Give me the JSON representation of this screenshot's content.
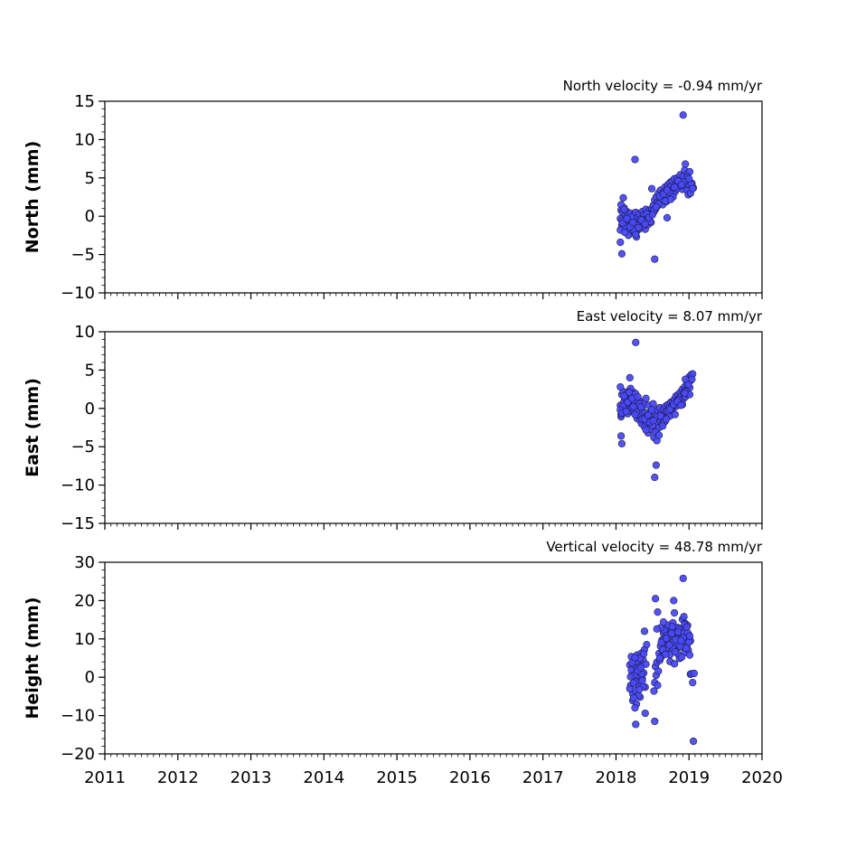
{
  "chart_data": [
    {
      "type": "scatter",
      "title": "North velocity = -0.94 mm/yr",
      "ylabel": "North (mm)",
      "xlabel": "",
      "xlim": [
        2011,
        2020
      ],
      "ylim": [
        -10,
        15
      ],
      "yticks": [
        15,
        10,
        5,
        0,
        -5,
        -10
      ],
      "ytick_labels": [
        "15",
        "10",
        "5",
        "0",
        "−5",
        "−10"
      ],
      "xticks": [
        2011,
        2012,
        2013,
        2014,
        2015,
        2016,
        2017,
        2018,
        2019,
        2020
      ],
      "xtick_labels": [],
      "marker_color": "#4a4af5",
      "series": [
        {
          "x": [
            2018.06,
            2018.07,
            2018.08,
            2018.09,
            2018.1,
            2018.11,
            2018.12,
            2018.13,
            2018.14,
            2018.15,
            2018.16,
            2018.17,
            2018.18,
            2018.19,
            2018.2,
            2018.21,
            2018.22,
            2018.23,
            2018.24,
            2018.25,
            2018.26,
            2018.27,
            2018.28,
            2018.29,
            2018.3,
            2018.31,
            2018.32,
            2018.33,
            2018.34,
            2018.35,
            2018.36,
            2018.37,
            2018.38,
            2018.39,
            2018.4,
            2018.41,
            2018.42,
            2018.43,
            2018.44,
            2018.45,
            2018.46,
            2018.47,
            2018.48,
            2018.49,
            2018.5,
            2018.51,
            2018.52,
            2018.53,
            2018.54,
            2018.55,
            2018.56,
            2018.57,
            2018.58,
            2018.59,
            2018.6,
            2018.61,
            2018.62,
            2018.63,
            2018.64,
            2018.65,
            2018.66,
            2018.67,
            2018.68,
            2018.69,
            2018.7,
            2018.71,
            2018.72,
            2018.73,
            2018.74,
            2018.75,
            2018.76,
            2018.77,
            2018.78,
            2018.79,
            2018.8,
            2018.81,
            2018.82,
            2018.83,
            2018.84,
            2018.85,
            2018.86,
            2018.87,
            2018.88,
            2018.89,
            2018.9,
            2018.91,
            2018.92,
            2018.93,
            2018.94,
            2018.95,
            2018.96,
            2018.97,
            2018.98,
            2018.99,
            2019.0,
            2019.01,
            2019.02,
            2019.04,
            2019.06,
            2018.07,
            2018.08,
            2018.11,
            2018.13,
            2018.17,
            2018.21,
            2018.25,
            2018.28,
            2018.33,
            2018.38,
            2018.42,
            2018.47,
            2018.52,
            2018.58,
            2018.63,
            2018.68,
            2018.73,
            2018.78,
            2018.83,
            2018.88,
            2018.93,
            2018.98,
            2019.03,
            2018.06,
            2018.09,
            2018.12,
            2018.15,
            2018.19,
            2018.23,
            2018.27,
            2018.31,
            2018.35,
            2018.4,
            2018.45,
            2018.5,
            2018.55,
            2018.6,
            2018.65,
            2018.7,
            2018.75,
            2018.8,
            2018.85,
            2018.9,
            2018.95,
            2019.0,
            2019.05,
            2018.06,
            2018.08,
            2018.1,
            2018.26,
            2018.49,
            2018.53,
            2018.92,
            2018.7
          ],
          "y": [
            -0.3,
            0.8,
            -1.2,
            0.5,
            -0.8,
            1.1,
            -0.4,
            0.2,
            -1.5,
            0.6,
            -0.9,
            0.3,
            -0.6,
            -1.8,
            0.4,
            -1.1,
            -0.2,
            -2.2,
            0.1,
            -0.7,
            -1.4,
            0.5,
            -0.5,
            -1.9,
            -0.2,
            -1.0,
            0.3,
            -1.6,
            -0.4,
            -0.9,
            0.6,
            -1.3,
            0.2,
            -0.6,
            -1.7,
            0.9,
            -0.3,
            0.1,
            -1.1,
            0.7,
            -0.2,
            0.4,
            -0.8,
            1.0,
            0.3,
            1.4,
            0.6,
            2.1,
            0.9,
            2.5,
            1.2,
            1.8,
            3.0,
            1.6,
            2.2,
            3.4,
            2.0,
            2.8,
            1.5,
            3.1,
            2.4,
            3.8,
            2.9,
            1.9,
            3.5,
            4.1,
            2.7,
            3.3,
            4.4,
            3.0,
            3.9,
            4.6,
            2.6,
            3.7,
            4.9,
            3.2,
            4.2,
            3.6,
            5.0,
            4.3,
            3.8,
            4.8,
            5.4,
            4.0,
            4.7,
            3.5,
            5.2,
            4.4,
            6.0,
            3.9,
            4.6,
            3.4,
            5.5,
            2.8,
            4.1,
            5.8,
            3.0,
            4.3,
            3.7,
            1.5,
            -0.6,
            0.9,
            -1.3,
            -2.5,
            -0.1,
            -1.9,
            -2.7,
            -0.4,
            -1.2,
            0.3,
            -0.7,
            0.8,
            1.6,
            2.3,
            2.0,
            3.1,
            2.5,
            3.6,
            4.0,
            4.5,
            5.1,
            4.2,
            -1.8,
            -0.9,
            -2.1,
            -0.3,
            -1.4,
            -0.8,
            -2.4,
            -1.5,
            -0.5,
            -1.0,
            -0.2,
            0.2,
            1.2,
            2.6,
            2.9,
            3.4,
            2.2,
            3.8,
            4.6,
            4.1,
            6.8,
            4.9,
            3.6,
            -3.4,
            -4.9,
            2.4,
            7.4,
            3.6,
            -5.6,
            13.2,
            -0.2
          ]
        }
      ]
    },
    {
      "type": "scatter",
      "title": "East velocity = 8.07 mm/yr",
      "ylabel": "East (mm)",
      "xlabel": "",
      "xlim": [
        2011,
        2020
      ],
      "ylim": [
        -15,
        10
      ],
      "yticks": [
        10,
        5,
        0,
        -5,
        -10,
        -15
      ],
      "ytick_labels": [
        "10",
        "5",
        "0",
        "−5",
        "−10",
        "−15"
      ],
      "xticks": [
        2011,
        2012,
        2013,
        2014,
        2015,
        2016,
        2017,
        2018,
        2019,
        2020
      ],
      "xtick_labels": [],
      "marker_color": "#4a4af5",
      "series": [
        {
          "x": [
            2018.06,
            2018.07,
            2018.08,
            2018.09,
            2018.1,
            2018.11,
            2018.12,
            2018.13,
            2018.14,
            2018.15,
            2018.16,
            2018.17,
            2018.18,
            2018.19,
            2018.2,
            2018.21,
            2018.22,
            2018.23,
            2018.24,
            2018.25,
            2018.26,
            2018.27,
            2018.28,
            2018.29,
            2018.3,
            2018.31,
            2018.32,
            2018.33,
            2018.34,
            2018.35,
            2018.36,
            2018.37,
            2018.38,
            2018.39,
            2018.4,
            2018.41,
            2018.42,
            2018.43,
            2018.44,
            2018.45,
            2018.46,
            2018.47,
            2018.48,
            2018.49,
            2018.5,
            2018.51,
            2018.52,
            2018.53,
            2018.54,
            2018.55,
            2018.56,
            2018.57,
            2018.58,
            2018.59,
            2018.6,
            2018.61,
            2018.62,
            2018.63,
            2018.64,
            2018.65,
            2018.66,
            2018.67,
            2018.68,
            2018.69,
            2018.7,
            2018.71,
            2018.72,
            2018.73,
            2018.74,
            2018.75,
            2018.76,
            2018.77,
            2018.78,
            2018.79,
            2018.8,
            2018.81,
            2018.82,
            2018.83,
            2018.84,
            2018.85,
            2018.86,
            2018.87,
            2018.88,
            2018.89,
            2018.9,
            2018.91,
            2018.92,
            2018.93,
            2018.94,
            2018.95,
            2018.96,
            2018.97,
            2018.98,
            2018.99,
            2019.0,
            2019.01,
            2019.02,
            2019.03,
            2019.05,
            2018.07,
            2018.09,
            2018.12,
            2018.16,
            2018.2,
            2018.24,
            2018.28,
            2018.32,
            2018.36,
            2018.41,
            2018.46,
            2018.51,
            2018.56,
            2018.61,
            2018.66,
            2018.71,
            2018.76,
            2018.81,
            2018.86,
            2018.91,
            2018.96,
            2019.01,
            2018.06,
            2018.08,
            2018.11,
            2018.14,
            2018.18,
            2018.22,
            2018.26,
            2018.3,
            2018.34,
            2018.39,
            2018.44,
            2018.49,
            2018.54,
            2018.59,
            2018.64,
            2018.69,
            2018.74,
            2018.79,
            2018.84,
            2018.89,
            2018.94,
            2018.99,
            2019.04,
            2018.07,
            2018.08,
            2018.06,
            2018.27,
            2018.53,
            2018.55,
            2018.19,
            2018.95
          ],
          "y": [
            0.4,
            -1.1,
            1.8,
            -0.5,
            2.2,
            0.9,
            -0.2,
            1.5,
            0.3,
            2.0,
            -0.7,
            1.2,
            0.6,
            2.4,
            -0.3,
            1.7,
            0.1,
            1.0,
            2.1,
            -0.4,
            0.8,
            1.9,
            0.2,
            -1.3,
            1.1,
            -0.8,
            0.5,
            -1.6,
            0.9,
            -2.0,
            -0.1,
            -1.2,
            0.7,
            -2.4,
            -0.6,
            1.3,
            -1.8,
            -0.9,
            -3.2,
            0.4,
            -1.5,
            -2.7,
            -0.3,
            -1.0,
            -2.2,
            0.6,
            -3.8,
            -1.4,
            -0.5,
            -2.9,
            -1.1,
            -0.2,
            -1.9,
            -2.5,
            0.1,
            -1.6,
            -0.7,
            -2.1,
            -1.3,
            -0.1,
            -0.9,
            -1.7,
            0.3,
            -0.4,
            -1.2,
            0.5,
            -0.6,
            0.2,
            -1.0,
            0.8,
            -0.2,
            0.4,
            0.9,
            0.1,
            1.2,
            0.6,
            1.6,
            0.3,
            1.0,
            1.8,
            0.7,
            1.4,
            2.1,
            0.9,
            1.7,
            2.5,
            1.2,
            2.0,
            2.8,
            1.5,
            2.4,
            3.4,
            1.9,
            3.0,
            4.1,
            2.7,
            3.6,
            4.4,
            4.5,
            -0.8,
            0.3,
            1.4,
            0.8,
            2.6,
            0.2,
            -0.5,
            0.6,
            -1.4,
            -2.8,
            -1.8,
            -1.6,
            -4.2,
            -1.0,
            -1.8,
            -0.3,
            0.2,
            -0.8,
            1.1,
            0.5,
            2.2,
            1.8,
            -0.2,
            -0.6,
            1.6,
            -0.4,
            2.1,
            1.3,
            -0.8,
            1.5,
            0.2,
            -1.4,
            -0.9,
            -0.2,
            -3.1,
            -3.5,
            -2.3,
            -1.4,
            -0.1,
            0.5,
            0.9,
            0.4,
            2.0,
            3.1,
            3.8,
            -3.6,
            -4.6,
            2.8,
            8.6,
            -9.0,
            -7.4,
            4.0,
            3.8
          ]
        }
      ]
    },
    {
      "type": "scatter",
      "title": "Vertical velocity = 48.78 mm/yr",
      "ylabel": "Height (mm)",
      "xlabel": "",
      "xlim": [
        2011,
        2020
      ],
      "ylim": [
        -20,
        30
      ],
      "yticks": [
        30,
        20,
        10,
        0,
        -10,
        -20
      ],
      "ytick_labels": [
        "30",
        "20",
        "10",
        "0",
        "−10",
        "−20"
      ],
      "xticks": [
        2011,
        2012,
        2013,
        2014,
        2015,
        2016,
        2017,
        2018,
        2019,
        2020
      ],
      "xtick_labels": [
        "2011",
        "2012",
        "2013",
        "2014",
        "2015",
        "2016",
        "2017",
        "2018",
        "2019",
        "2020"
      ],
      "marker_color": "#4a4af5",
      "series": [
        {
          "x": [
            2018.19,
            2018.2,
            2018.21,
            2018.22,
            2018.23,
            2018.24,
            2018.25,
            2018.26,
            2018.27,
            2018.28,
            2018.29,
            2018.3,
            2018.31,
            2018.32,
            2018.33,
            2018.34,
            2018.35,
            2018.36,
            2018.37,
            2018.38,
            2018.39,
            2018.4,
            2018.41,
            2018.42,
            2018.19,
            2018.21,
            2018.23,
            2018.25,
            2018.27,
            2018.29,
            2018.31,
            2018.33,
            2018.35,
            2018.37,
            2018.2,
            2018.22,
            2018.24,
            2018.26,
            2018.28,
            2018.3,
            2018.32,
            2018.34,
            2018.36,
            2018.38,
            2018.52,
            2018.53,
            2018.54,
            2018.55,
            2018.56,
            2018.57,
            2018.58,
            2018.59,
            2018.6,
            2018.61,
            2018.62,
            2018.63,
            2018.64,
            2018.65,
            2018.66,
            2018.67,
            2018.68,
            2018.69,
            2018.7,
            2018.71,
            2018.72,
            2018.73,
            2018.74,
            2018.75,
            2018.76,
            2018.77,
            2018.78,
            2018.79,
            2018.8,
            2018.81,
            2018.82,
            2018.83,
            2018.84,
            2018.85,
            2018.86,
            2018.87,
            2018.88,
            2018.89,
            2018.9,
            2018.91,
            2018.92,
            2018.93,
            2018.94,
            2018.95,
            2018.96,
            2018.97,
            2018.98,
            2018.99,
            2019.0,
            2019.01,
            2019.02,
            2018.6,
            2018.62,
            2018.64,
            2018.66,
            2018.68,
            2018.7,
            2018.72,
            2018.74,
            2018.76,
            2018.78,
            2018.8,
            2018.82,
            2018.84,
            2018.86,
            2018.88,
            2018.9,
            2018.92,
            2018.94,
            2018.96,
            2018.98,
            2019.0,
            2018.61,
            2018.65,
            2018.69,
            2018.73,
            2018.77,
            2018.81,
            2018.85,
            2018.89,
            2018.93,
            2018.97,
            2019.01,
            2018.54,
            2018.57,
            2018.27,
            2018.24,
            2018.4,
            2018.53,
            2018.56,
            2018.79,
            2018.92,
            2019.02,
            2019.03,
            2019.05,
            2019.06,
            2019.07,
            2018.39,
            2018.26,
            2018.8
          ],
          "y": [
            3.2,
            -2.1,
            5.4,
            0.8,
            -4.3,
            2.6,
            -0.7,
            4.1,
            -3.5,
            1.5,
            5.8,
            -1.8,
            3.7,
            0.2,
            -5.2,
            2.9,
            6.3,
            -0.4,
            4.6,
            1.1,
            7.2,
            -2.6,
            3.4,
            8.5,
            -3.0,
            1.9,
            -6.1,
            0.5,
            -1.2,
            2.2,
            -4.8,
            4.9,
            0.9,
            -2.4,
            0.1,
            3.8,
            -1.5,
            5.1,
            -7.0,
            1.7,
            -3.2,
            2.5,
            -0.9,
            6.1,
            -3.6,
            -1.4,
            2.8,
            0.5,
            3.9,
            -2.1,
            1.6,
            6.2,
            4.4,
            8.1,
            5.3,
            9.7,
            7.0,
            11.5,
            8.8,
            10.2,
            6.5,
            12.8,
            9.4,
            7.7,
            13.6,
            10.8,
            5.9,
            8.3,
            11.9,
            9.0,
            14.2,
            7.4,
            10.5,
            12.1,
            6.8,
            9.9,
            13.0,
            8.6,
            11.2,
            4.9,
            10.0,
            12.7,
            7.9,
            15.1,
            9.3,
            11.7,
            6.4,
            14.0,
            10.6,
            8.2,
            13.5,
            7.1,
            11.0,
            5.8,
            9.5,
            5.0,
            9.1,
            7.2,
            12.3,
            6.0,
            10.9,
            8.7,
            4.1,
            11.4,
            7.5,
            3.5,
            9.8,
            6.2,
            12.5,
            8.1,
            5.2,
            10.3,
            13.8,
            7.6,
            11.6,
            9.2,
            12.9,
            14.4,
            10.1,
            8.4,
            13.2,
            6.6,
            11.8,
            9.6,
            15.8,
            13.1,
            10.7,
            20.5,
            17.0,
            -12.3,
            -5.4,
            -9.4,
            -11.5,
            12.6,
            20.0,
            25.8,
            0.8,
            0.9,
            -1.4,
            -16.7,
            1.0,
            12.0,
            -8.0,
            16.8
          ]
        }
      ]
    }
  ]
}
